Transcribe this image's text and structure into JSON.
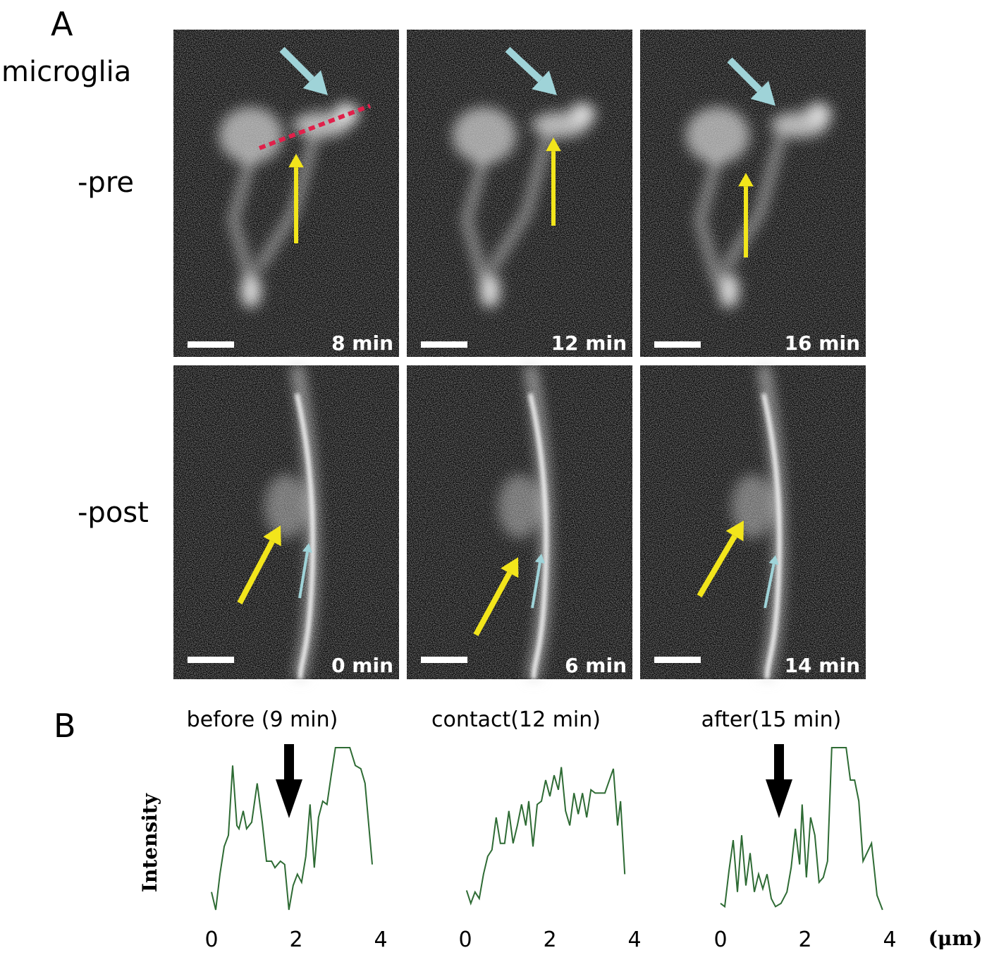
{
  "figure": {
    "panel_a": "A",
    "panel_b": "B",
    "row_labels": [
      "microglia",
      "-pre",
      "-post"
    ],
    "pre_times": [
      "8 min",
      "12 min",
      "16 min"
    ],
    "post_times": [
      "0 min",
      "6 min",
      "14 min"
    ]
  },
  "chart_data": [
    {
      "type": "line",
      "title": "before (9 min)",
      "ylabel": "Intensity",
      "color": "#2e6b34",
      "xlim": [
        0,
        4
      ],
      "xticks": [
        0,
        2,
        4
      ],
      "ylim": [
        0,
        100
      ],
      "x": [
        0,
        0.1,
        0.2,
        0.3,
        0.4,
        0.5,
        0.6,
        0.65,
        0.75,
        0.83,
        0.95,
        1.08,
        1.2,
        1.3,
        1.42,
        1.5,
        1.63,
        1.73,
        1.83,
        1.93,
        2.03,
        2.13,
        2.23,
        2.33,
        2.43,
        2.53,
        2.63,
        2.73,
        2.83,
        2.93,
        3.27,
        3.4,
        3.53,
        3.63,
        3.8
      ],
      "values": [
        11,
        0,
        22,
        39,
        46,
        89,
        52,
        50,
        61,
        50,
        54,
        78,
        54,
        30,
        30,
        26,
        30,
        28,
        0,
        15,
        22,
        17,
        33,
        65,
        26,
        57,
        67,
        65,
        83,
        100,
        100,
        89,
        87,
        78,
        28
      ]
    },
    {
      "type": "line",
      "title": "contact(12 min)",
      "color": "#2e6b34",
      "xlim": [
        0,
        4
      ],
      "xticks": [
        0,
        2,
        4
      ],
      "ylim": [
        0,
        100
      ],
      "x": [
        0.03,
        0.13,
        0.23,
        0.33,
        0.43,
        0.53,
        0.63,
        0.73,
        0.83,
        0.93,
        1.03,
        1.13,
        1.23,
        1.33,
        1.43,
        1.5,
        1.6,
        1.7,
        1.8,
        1.9,
        2,
        2.1,
        2.2,
        2.27,
        2.37,
        2.47,
        2.57,
        2.67,
        2.77,
        2.87,
        2.97,
        3.07,
        3.3,
        3.5,
        3.6,
        3.67,
        3.77
      ],
      "values": [
        12,
        4,
        11,
        7,
        22,
        33,
        37,
        57,
        41,
        41,
        61,
        41,
        52,
        65,
        52,
        67,
        39,
        65,
        67,
        80,
        70,
        83,
        74,
        88,
        61,
        52,
        72,
        59,
        72,
        57,
        74,
        72,
        72,
        87,
        52,
        67,
        22
      ]
    },
    {
      "type": "line",
      "title": "after(15 min)",
      "xlabel": "(μm)",
      "color": "#2e6b34",
      "xlim": [
        0,
        4
      ],
      "xticks": [
        0,
        2,
        4
      ],
      "ylim": [
        0,
        100
      ],
      "x": [
        0,
        0.1,
        0.2,
        0.3,
        0.4,
        0.5,
        0.6,
        0.7,
        0.8,
        0.9,
        1,
        1.1,
        1.2,
        1.3,
        1.43,
        1.57,
        1.67,
        1.77,
        1.87,
        1.93,
        2.03,
        2.13,
        2.23,
        2.33,
        2.43,
        2.53,
        2.63,
        2.97,
        3.07,
        3.17,
        3.27,
        3.37,
        3.57,
        3.7,
        3.83
      ],
      "values": [
        4,
        2,
        24,
        43,
        11,
        46,
        15,
        35,
        11,
        22,
        13,
        22,
        7,
        2,
        4,
        11,
        26,
        50,
        28,
        65,
        20,
        57,
        46,
        17,
        20,
        30,
        100,
        100,
        80,
        80,
        67,
        30,
        41,
        9,
        0
      ]
    }
  ]
}
